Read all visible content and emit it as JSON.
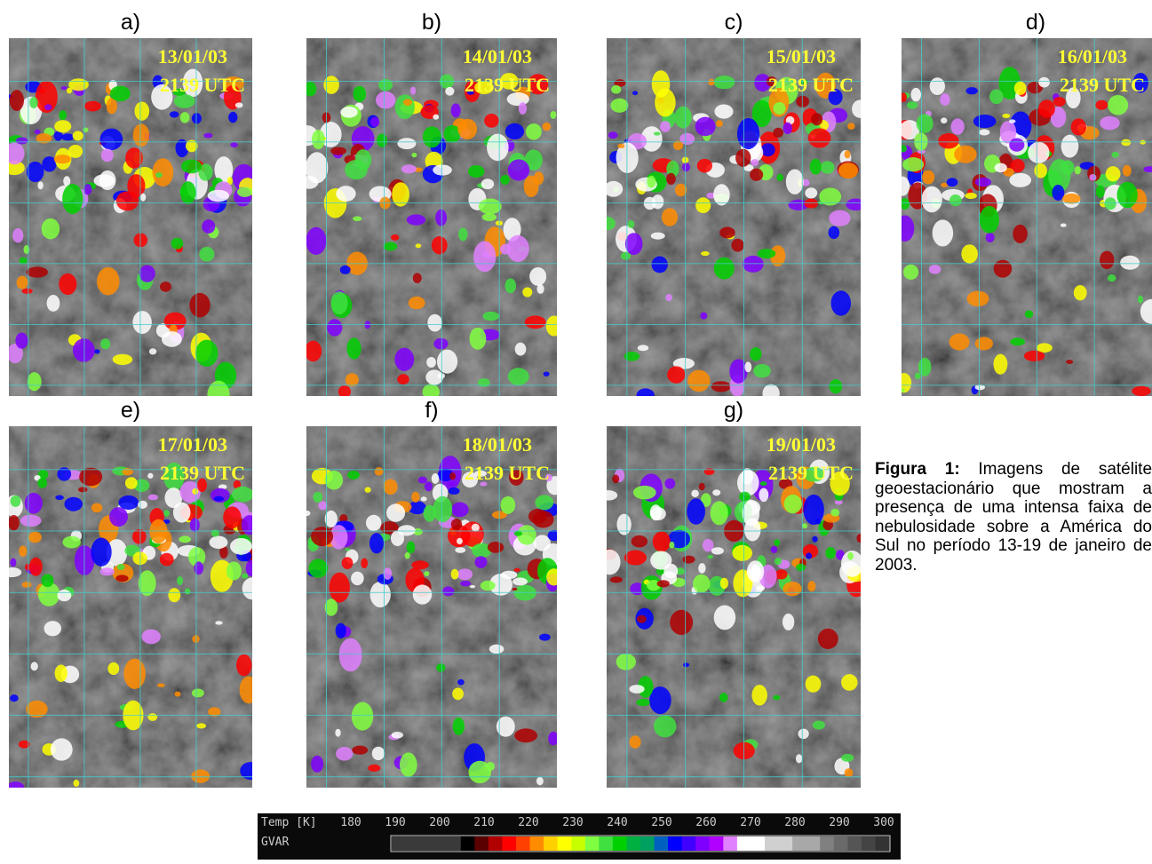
{
  "panels": [
    {
      "label": "a)",
      "date": "13/01/03",
      "time": "2139 UTC"
    },
    {
      "label": "b)",
      "date": "14/01/03",
      "time": "2139 UTC"
    },
    {
      "label": "c)",
      "date": "15/01/03",
      "time": "2139 UTC"
    },
    {
      "label": "d)",
      "date": "16/01/03",
      "time": "2139 UTC"
    },
    {
      "label": "e)",
      "date": "17/01/03",
      "time": "2139 UTC"
    },
    {
      "label": "f)",
      "date": "18/01/03",
      "time": "2139 UTC"
    },
    {
      "label": "g)",
      "date": "19/01/03",
      "time": "2139 UTC"
    }
  ],
  "caption": {
    "label": "Figura 1:",
    "text": "Imagens de satélite geoestacionário que mostram a presença de uma intensa faixa de nebulosidade sobre a América do Sul no período 13-19 de janeiro de 2003."
  },
  "colorbar": {
    "title": "Temp [K]",
    "source": "GVAR",
    "ticks": [
      180,
      190,
      200,
      210,
      220,
      230,
      240,
      250,
      260,
      270,
      280,
      290,
      300
    ],
    "colors": [
      "#3a3a3a",
      "#3a3a3a",
      "#3a3a3a",
      "#3a3a3a",
      "#3a3a3a",
      "#000000",
      "#5a0000",
      "#b00000",
      "#ff0000",
      "#ff4000",
      "#ff8c00",
      "#ffd000",
      "#ffff00",
      "#c8ff00",
      "#80ff40",
      "#40e040",
      "#00d000",
      "#00b040",
      "#00a060",
      "#0060c0",
      "#0000ff",
      "#4000ff",
      "#8000ff",
      "#b000ff",
      "#e080ff",
      "#ffffff",
      "#ffffff",
      "#d0d0d0",
      "#d0d0d0",
      "#a8a8a8",
      "#a8a8a8",
      "#808080",
      "#6a6a6a",
      "#555555",
      "#444444",
      "#333333"
    ]
  }
}
